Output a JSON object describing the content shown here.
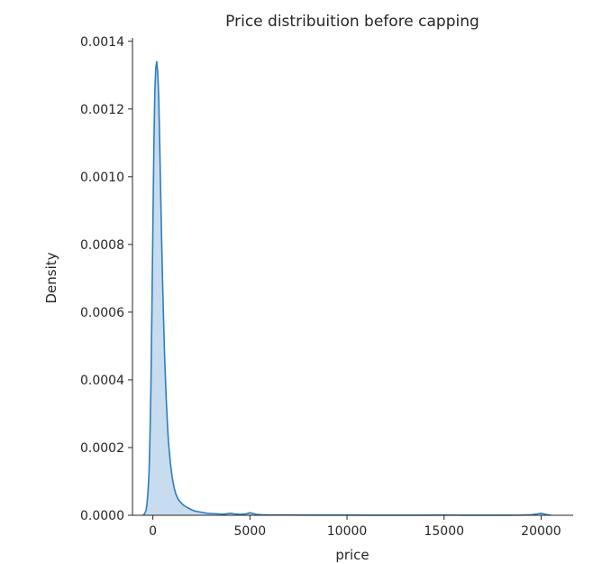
{
  "chart_data": {
    "type": "area",
    "title": "Price distribuition before capping",
    "xlabel": "price",
    "ylabel": "Density",
    "xlim": [
      -1050,
      21650
    ],
    "ylim": [
      0,
      0.00141
    ],
    "x_ticks": [
      0,
      5000,
      10000,
      15000,
      20000
    ],
    "x_tick_labels": [
      "0",
      "5000",
      "10000",
      "15000",
      "20000"
    ],
    "y_ticks": [
      0,
      0.0002,
      0.0004,
      0.0006,
      0.0008,
      0.001,
      0.0012,
      0.0014
    ],
    "y_tick_labels": [
      "0.0000",
      "0.0002",
      "0.0004",
      "0.0006",
      "0.0008",
      "0.0010",
      "0.0012",
      "0.0014"
    ],
    "grid": false,
    "legend": "none",
    "colors": {
      "line": "#2f7dbb",
      "fill": "#c7dcee",
      "axis": "#262626"
    },
    "series": [
      {
        "x": [
          -500,
          -420,
          -350,
          -300,
          -250,
          -200,
          -150,
          -100,
          -50,
          0,
          50,
          100,
          150,
          200,
          250,
          300,
          350,
          400,
          450,
          500,
          550,
          600,
          650,
          700,
          750,
          800,
          900,
          1000,
          1100,
          1200,
          1300,
          1400,
          1500,
          1600,
          1800,
          2000,
          2200,
          2500,
          2800,
          3100,
          3400,
          3700,
          4000,
          4200,
          4500,
          4800,
          5000,
          5300,
          5600,
          6000,
          7000,
          8000,
          9000,
          10000,
          11000,
          12000,
          13000,
          14000,
          15000,
          16000,
          17000,
          18000,
          19000,
          19500,
          19800,
          20000,
          20200,
          20500
        ],
        "y": [
          0,
          5e-06,
          1.5e-05,
          3.5e-05,
          7e-05,
          0.00012,
          0.00023,
          0.00038,
          0.0006,
          0.00085,
          0.00108,
          0.00125,
          0.00132,
          0.00134,
          0.00131,
          0.00124,
          0.00111,
          0.00096,
          0.00082,
          0.00069,
          0.00058,
          0.00048,
          0.0004,
          0.00033,
          0.00027,
          0.00022,
          0.000155,
          0.00011,
          8e-05,
          6e-05,
          4.8e-05,
          4e-05,
          3.4e-05,
          2.9e-05,
          2.2e-05,
          1.6e-05,
          1.2e-05,
          9e-06,
          6e-06,
          5e-06,
          4e-06,
          3.5e-06,
          6e-06,
          4e-06,
          2.5e-06,
          4e-06,
          7.5e-06,
          3e-06,
          1.5e-06,
          1e-06,
          8e-07,
          5e-07,
          4e-07,
          4e-07,
          3e-07,
          3e-07,
          3e-07,
          3e-07,
          4e-07,
          3e-07,
          3e-07,
          3e-07,
          5e-07,
          1.5e-06,
          4e-06,
          6e-06,
          3e-06,
          0
        ]
      }
    ]
  }
}
